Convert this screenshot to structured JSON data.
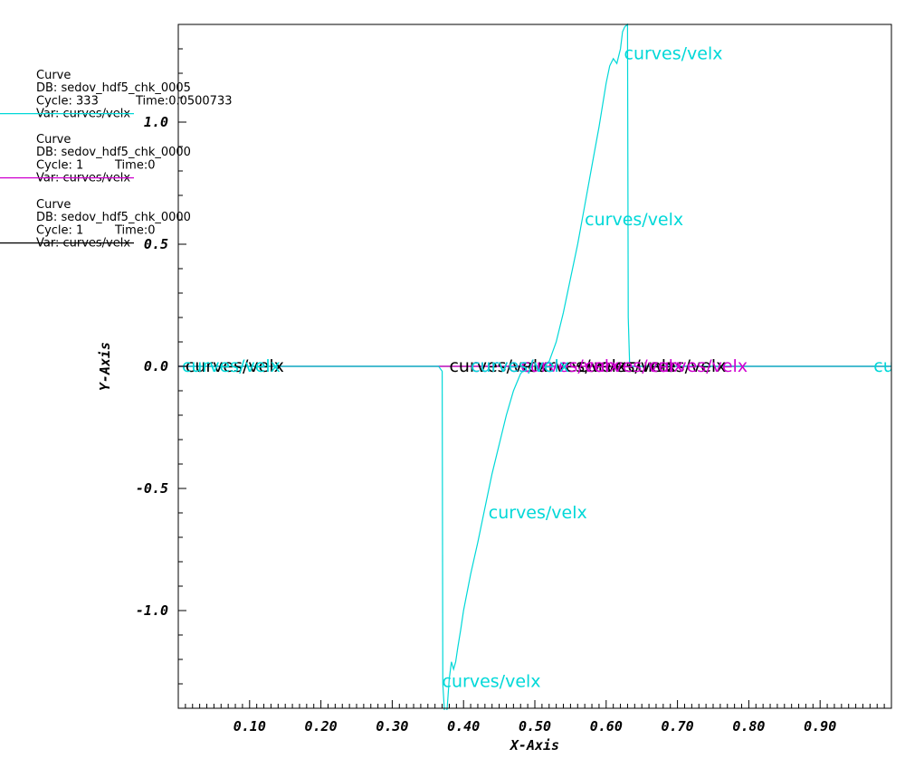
{
  "chart_data": {
    "type": "line",
    "xlabel": "X-Axis",
    "ylabel": "Y-Axis",
    "xlim": [
      0.0,
      1.0
    ],
    "ylim": [
      -1.4,
      1.4
    ],
    "x_ticks": [
      0.1,
      0.2,
      0.3,
      0.4,
      0.5,
      0.6,
      0.7,
      0.8,
      0.9
    ],
    "x_tick_labels": [
      "0.10",
      "0.20",
      "0.30",
      "0.40",
      "0.50",
      "0.60",
      "0.70",
      "0.80",
      "0.90"
    ],
    "y_ticks": [
      -1.0,
      -0.5,
      0.0,
      0.5,
      1.0
    ],
    "y_tick_labels": [
      "-1.0",
      "-0.5",
      "0.0",
      "0.5",
      "1.0"
    ],
    "grid": false,
    "legend_placement": "left",
    "series": [
      {
        "color": "#00d8d8",
        "legend": [
          "Curve",
          "DB: sedov_hdf5_chk_0005",
          "Cycle: 333",
          "Time:0.0500733",
          "Var: curves/velx"
        ],
        "x": [
          0.0,
          0.365,
          0.37,
          0.371,
          0.374,
          0.377,
          0.38,
          0.383,
          0.386,
          0.389,
          0.392,
          0.396,
          0.4,
          0.41,
          0.42,
          0.43,
          0.44,
          0.45,
          0.46,
          0.47,
          0.48,
          0.49,
          0.5,
          0.51,
          0.52,
          0.53,
          0.54,
          0.55,
          0.56,
          0.57,
          0.58,
          0.59,
          0.6,
          0.605,
          0.61,
          0.615,
          0.62,
          0.623,
          0.626,
          0.63,
          0.631,
          0.633,
          0.64,
          1.0
        ],
        "y": [
          0.0,
          0.0,
          -0.02,
          -1.3,
          -1.45,
          -1.4,
          -1.28,
          -1.21,
          -1.24,
          -1.21,
          -1.15,
          -1.08,
          -1.0,
          -0.85,
          -0.72,
          -0.58,
          -0.44,
          -0.32,
          -0.2,
          -0.1,
          -0.03,
          0.0,
          0.0,
          0.0,
          0.02,
          0.1,
          0.22,
          0.36,
          0.5,
          0.66,
          0.82,
          0.98,
          1.16,
          1.23,
          1.26,
          1.24,
          1.3,
          1.37,
          1.39,
          1.4,
          0.2,
          0.0,
          0.0,
          0.0
        ],
        "labels": [
          {
            "text": "curves/velx",
            "x": 0.625,
            "y": 1.28
          },
          {
            "text": "curves/velx",
            "x": 0.57,
            "y": 0.6
          },
          {
            "text": "curves/velx",
            "x": 0.435,
            "y": -0.6
          },
          {
            "text": "curves/velx",
            "x": 0.37,
            "y": -1.29
          },
          {
            "text": "curves/velx",
            "x": 0.005,
            "y": 0.0
          },
          {
            "text": "curves/velx",
            "x": 0.41,
            "y": 0.0
          },
          {
            "text": "cu",
            "x": 0.975,
            "y": 0.0
          }
        ]
      },
      {
        "color": "#d000d0",
        "legend": [
          "Curve",
          "DB: sedov_hdf5_chk_0000",
          "Cycle: 1",
          "Time:0",
          "Var: curves/velx"
        ],
        "x": [
          0.0,
          1.0
        ],
        "y": [
          0.0,
          0.0
        ],
        "labels": [
          {
            "text": "curves/velx",
            "x": 0.41,
            "y": 0.0
          },
          {
            "text": "curves/velx",
            "x": 0.48,
            "y": 0.0
          },
          {
            "text": "curves/velx",
            "x": 0.57,
            "y": 0.0
          },
          {
            "text": "curves/velx",
            "x": 0.66,
            "y": 0.0
          }
        ]
      },
      {
        "color": "#000000",
        "legend": [
          "Curve",
          "DB: sedov_hdf5_chk_0000",
          "Cycle: 1",
          "Time:0",
          "Var: curves/velx"
        ],
        "x": [
          0.0,
          1.0
        ],
        "y": [
          0.0,
          0.0
        ],
        "labels": [
          {
            "text": "curves/velx",
            "x": 0.01,
            "y": 0.0
          },
          {
            "text": "curves/velx",
            "x": 0.38,
            "y": 0.0
          },
          {
            "text": "curves/velx",
            "x": 0.49,
            "y": 0.0
          },
          {
            "text": "curves/velx",
            "x": 0.56,
            "y": 0.0
          },
          {
            "text": "curves/velx",
            "x": 0.63,
            "y": 0.0
          }
        ]
      }
    ]
  }
}
